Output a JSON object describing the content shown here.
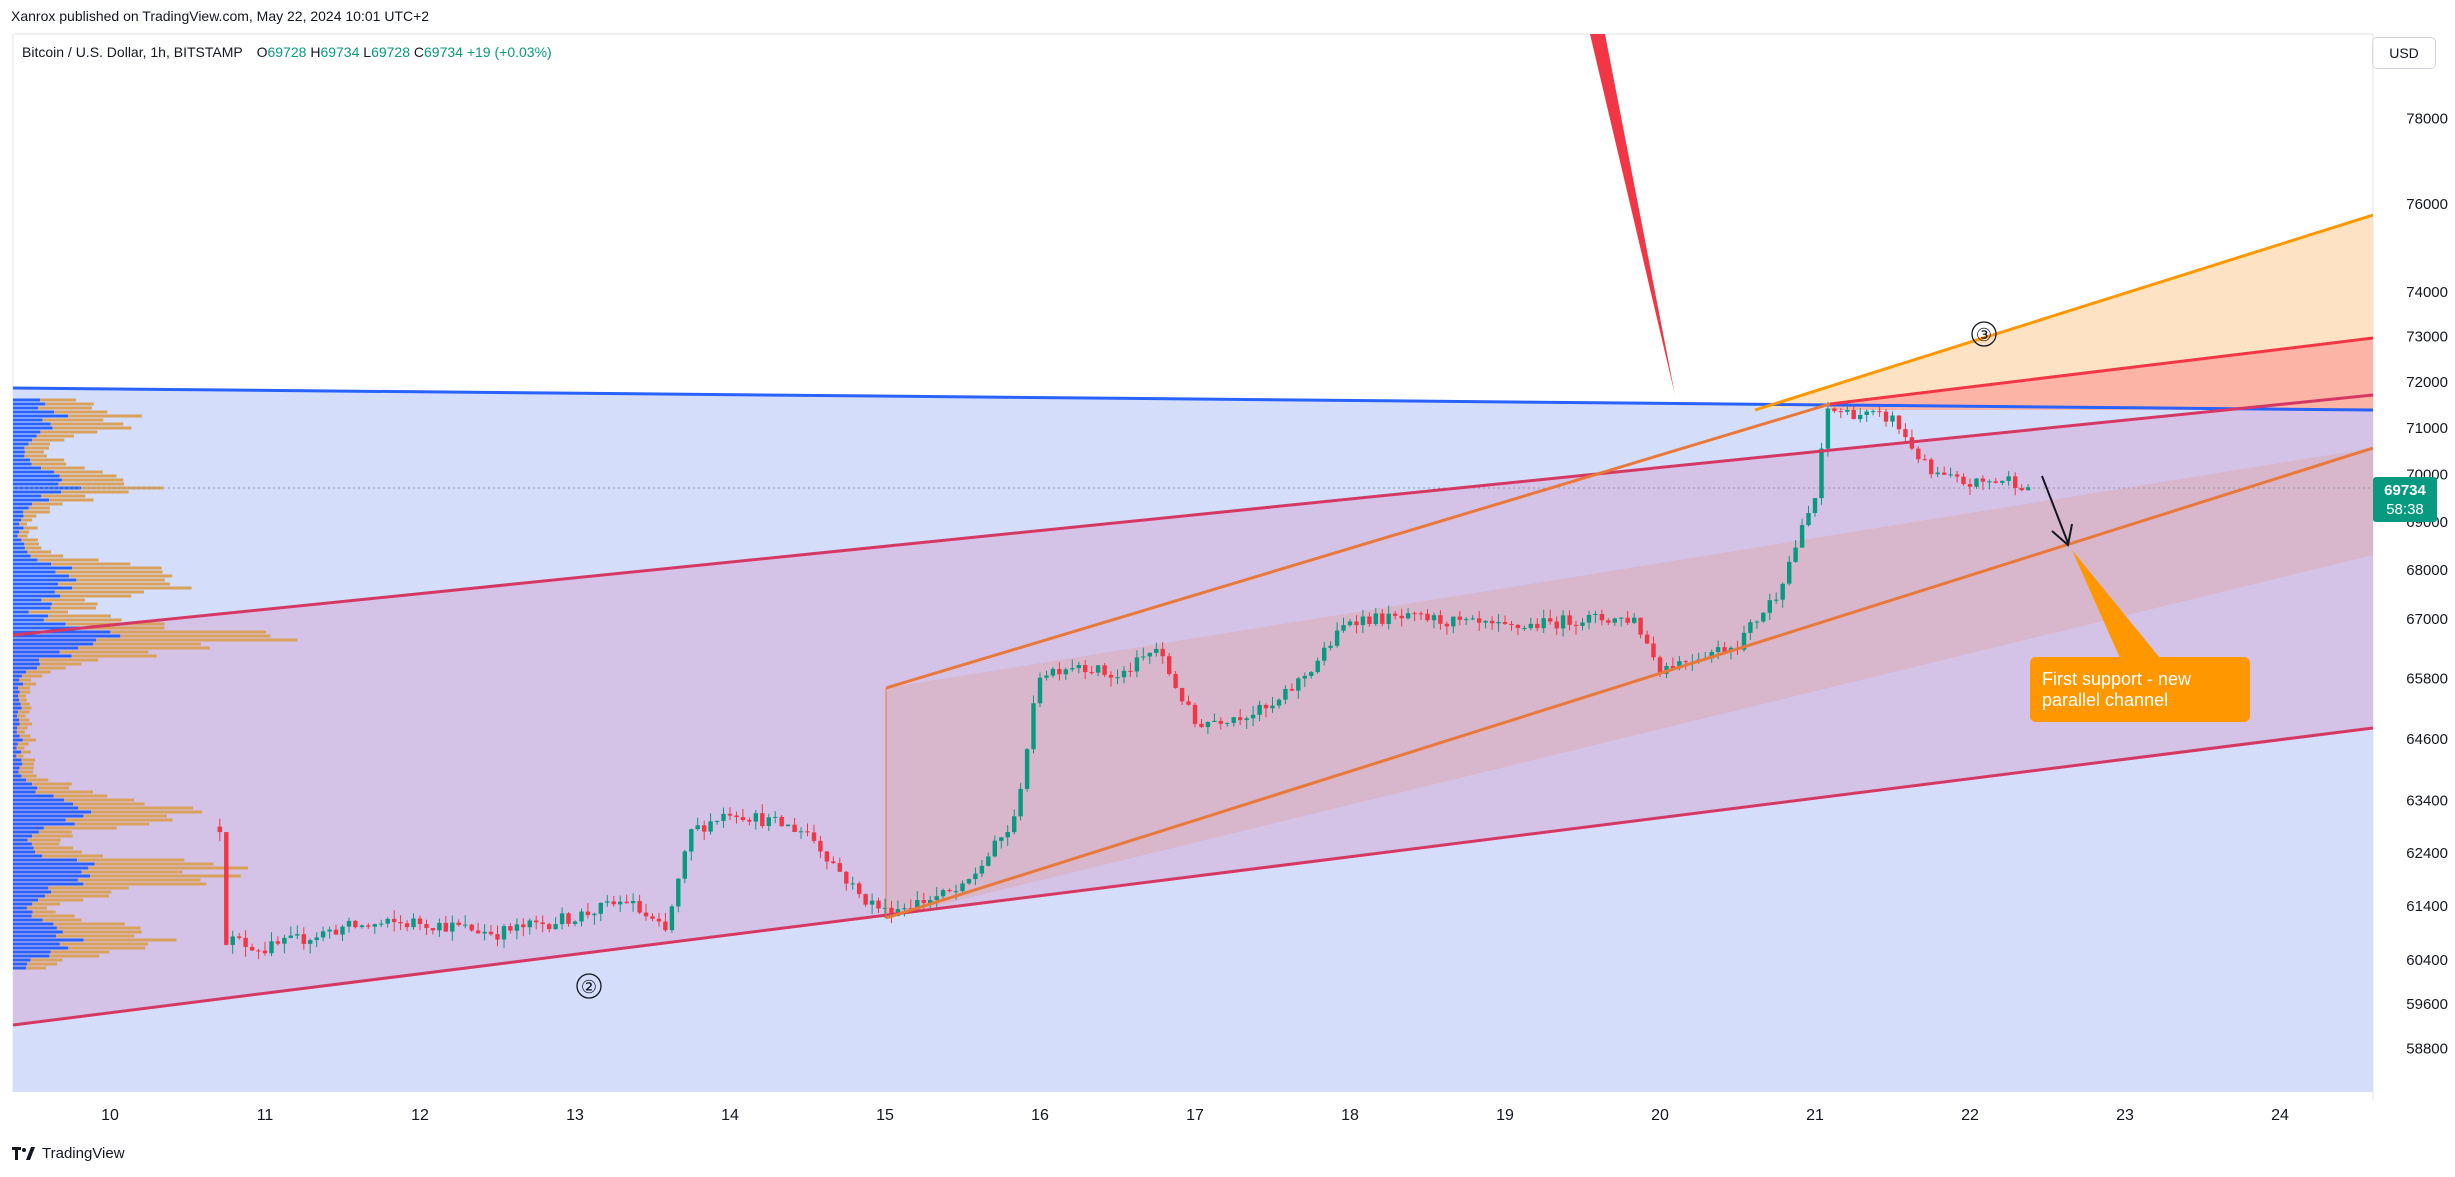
{
  "header": {
    "published_text": "Xanrox published on TradingView.com, May 22, 2024 10:01 UTC+2"
  },
  "symbol": {
    "name": "Bitcoin / U.S. Dollar, 1h, BITSTAMP",
    "open_label": "O",
    "open": "69728",
    "high_label": "H",
    "high": "69734",
    "low_label": "L",
    "low": "69728",
    "close_label": "C",
    "close": "69734",
    "change": "+19 (+0.03%)"
  },
  "currency": "USD",
  "price_tag": {
    "price": "69734",
    "countdown": "58:38"
  },
  "annotation": {
    "text_line1": "First support - new",
    "text_line2": "parallel channel"
  },
  "wave_labels": [
    "②",
    "③"
  ],
  "footer": {
    "brand": "TradingView"
  },
  "colors": {
    "bull": "#089981",
    "bear": "#f23645",
    "blue_line": "#2962ff",
    "magenta_line": "#d63864",
    "orange_line": "#f08a2e",
    "orange_ann": "#ff9800",
    "red_arrow": "#f23645"
  },
  "chart_data": {
    "type": "candlestick",
    "x_tick_labels": [
      "10",
      "11",
      "12",
      "13",
      "14",
      "15",
      "16",
      "17",
      "18",
      "19",
      "20",
      "21",
      "22",
      "23",
      "24"
    ],
    "y_tick_labels": [
      "78000",
      "76000",
      "74000",
      "73000",
      "72000",
      "71000",
      "70000",
      "69000",
      "68000",
      "67000",
      "65800",
      "64600",
      "63400",
      "62400",
      "61400",
      "60400",
      "59600",
      "58800"
    ],
    "y_scale": "log",
    "last_price": 69734,
    "price_path": [
      [
        "10 17:00",
        62900
      ],
      [
        "10 18:00",
        60800
      ],
      [
        "11 00:00",
        60600
      ],
      [
        "11 12:00",
        61000
      ],
      [
        "12 00:00",
        61100
      ],
      [
        "12 12:00",
        60900
      ],
      [
        "13 00:00",
        61200
      ],
      [
        "13 08:00",
        61500
      ],
      [
        "13 14:00",
        60900
      ],
      [
        "13 18:00",
        62800
      ],
      [
        "14 00:00",
        63200
      ],
      [
        "14 12:00",
        62800
      ],
      [
        "14 20:00",
        61600
      ],
      [
        "15 00:00",
        61300
      ],
      [
        "15 12:00",
        61700
      ],
      [
        "15 20:00",
        63000
      ],
      [
        "16 00:00",
        65900
      ],
      [
        "16 06:00",
        66100
      ],
      [
        "16 12:00",
        65800
      ],
      [
        "16 18:00",
        66400
      ],
      [
        "17 00:00",
        64900
      ],
      [
        "17 12:00",
        65200
      ],
      [
        "17 18:00",
        66000
      ],
      [
        "18 00:00",
        67000
      ],
      [
        "18 12:00",
        67000
      ],
      [
        "19 00:00",
        66800
      ],
      [
        "19 12:00",
        67000
      ],
      [
        "19 20:00",
        67000
      ],
      [
        "20 00:00",
        66000
      ],
      [
        "20 12:00",
        66500
      ],
      [
        "20 18:00",
        67500
      ],
      [
        "21 00:00",
        69500
      ],
      [
        "21 02:00",
        71400
      ],
      [
        "21 12:00",
        71200
      ],
      [
        "21 18:00",
        70000
      ],
      [
        "22 00:00",
        69800
      ],
      [
        "22 06:00",
        69900
      ],
      [
        "22 09:00",
        69734
      ]
    ],
    "drawings": [
      "blue descending resistance line",
      "magenta ascending channel",
      "orange parallel channel",
      "orange fan projection",
      "red falling wedge line",
      "black arrow to channel support"
    ]
  }
}
